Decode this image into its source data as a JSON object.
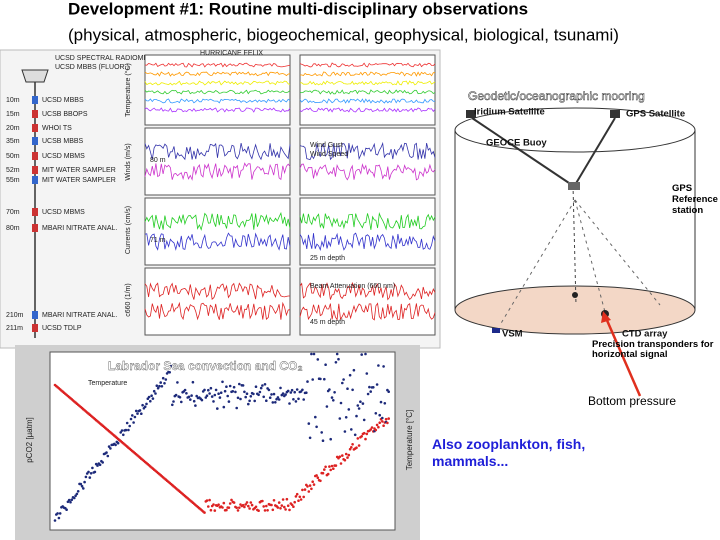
{
  "header": {
    "title": "Development #1:  Routine multi-disciplinary observations",
    "subtitle": "(physical, atmospheric, biogeochemical, geophysical, biological, tsunami)"
  },
  "mooring": {
    "instruments": [
      {
        "depth": "10m",
        "name": "UCSD MBBS"
      },
      {
        "depth": "15m",
        "name": "UCSB BBOPS"
      },
      {
        "depth": "20m",
        "name": "WHOI TS"
      },
      {
        "depth": "35m",
        "name": "UCSB MBBS"
      },
      {
        "depth": "50m",
        "name": "UCSD MBMS"
      },
      {
        "depth": "52m",
        "name": "MIT WATER SAMPLER"
      },
      {
        "depth": "55m",
        "name": "MIT WATER SAMPLER"
      },
      {
        "depth": "70m",
        "name": "UCSD MBMS"
      },
      {
        "depth": "80m",
        "name": "MBARI NITRATE ANAL."
      },
      {
        "depth": "210m",
        "name": "MBARI NITRATE ANAL."
      },
      {
        "depth": "211m",
        "name": "UCSD TDLP"
      }
    ],
    "top_labels": [
      "UCSD SPECTRAL RADIOMETER",
      "UCSD MBBS (FLUOR.)"
    ]
  },
  "plots": {
    "labels": [
      "HURRICANE FELIX",
      "Temperature (°C)",
      "Winds (m/s)",
      "Wind Gust",
      "Wind Speed",
      "80 m",
      "71 m",
      "25 m depth",
      "45 m depth",
      "Beam Attenuation (660 nm)",
      "Currents (cm/s)",
      "c660 (1/m)"
    ]
  },
  "diagram": {
    "title": "Geodetic/oceanographic mooring",
    "iridium": "Iridium Satellite",
    "gps": "GPS Satellite",
    "buoy": "GEOCE Buoy",
    "reference": "GPS Reference station",
    "vsm": "VSM",
    "ctd": "CTD array",
    "transponders": "Precision transponders for horizontal signal"
  },
  "co2": {
    "title": "Labrador Sea convection and CO₂",
    "ylabel": "pCO2 [µatm]",
    "y2label": "Temperature [°C]",
    "legend": "Temperature"
  },
  "notes": {
    "pressure": "Bottom pressure",
    "biology": "Also zooplankton, fish, mammals..."
  }
}
